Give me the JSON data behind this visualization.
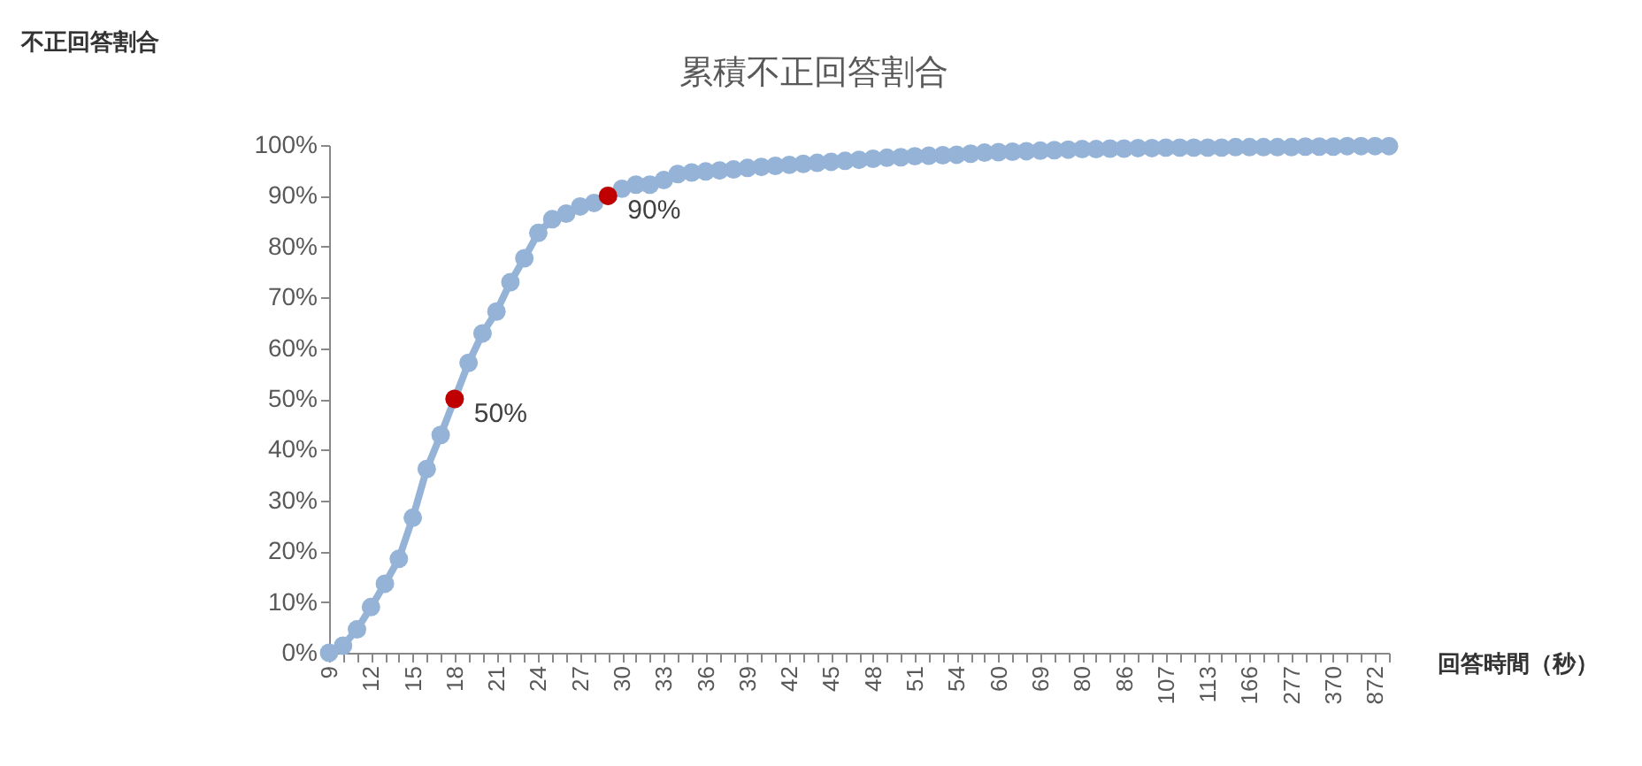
{
  "chart_data": {
    "type": "line",
    "title": "累積不正回答割合",
    "xlabel": "回答時間（秒）",
    "annotations": [
      "不正回答割合"
    ],
    "categories": [
      "9",
      null,
      null,
      "12",
      null,
      null,
      "15",
      null,
      null,
      "18",
      null,
      null,
      "21",
      null,
      null,
      "24",
      null,
      null,
      "27",
      null,
      null,
      "30",
      null,
      null,
      "33",
      null,
      null,
      "36",
      null,
      null,
      "39",
      null,
      null,
      "42",
      null,
      null,
      "45",
      null,
      null,
      "48",
      null,
      null,
      "51",
      null,
      null,
      "54",
      null,
      null,
      "60",
      null,
      null,
      "69",
      null,
      null,
      "80",
      null,
      null,
      "86",
      null,
      null,
      "107",
      null,
      null,
      "113",
      null,
      null,
      "166",
      null,
      null,
      "277",
      null,
      null,
      "370",
      null,
      null,
      "872",
      null
    ],
    "series": [
      {
        "color": "#95b3d7",
        "values": [
          0,
          1.4,
          4.6,
          9.0,
          13.6,
          18.5,
          26.6,
          36.2,
          42.9,
          50,
          57.1,
          62.9,
          67.2,
          73.0,
          77.7,
          82.7,
          85.4,
          86.5,
          87.9,
          88.6,
          90,
          91.4,
          92.2,
          92.2,
          93.1,
          94.3,
          94.6,
          94.8,
          95.0,
          95.2,
          95.5,
          95.7,
          95.9,
          96.1,
          96.3,
          96.5,
          96.7,
          96.9,
          97.1,
          97.3,
          97.5,
          97.6,
          97.8,
          97.9,
          98.0,
          98.1,
          98.3,
          98.5,
          98.6,
          98.7,
          98.8,
          98.9,
          99.0,
          99.1,
          99.2,
          99.2,
          99.3,
          99.3,
          99.4,
          99.4,
          99.5,
          99.5,
          99.5,
          99.5,
          99.5,
          99.6,
          99.6,
          99.6,
          99.6,
          99.6,
          99.7,
          99.7,
          99.7,
          99.8,
          99.8,
          99.8,
          99.8
        ]
      },
      {
        "type": "scatter",
        "color": "#c00000",
        "values": [
          null,
          null,
          null,
          null,
          null,
          null,
          null,
          null,
          null,
          50,
          null,
          null,
          null,
          null,
          null,
          null,
          null,
          null,
          null,
          null,
          90,
          null,
          null,
          null,
          null,
          null,
          null,
          null,
          null,
          null,
          null,
          null,
          null,
          null,
          null,
          null,
          null,
          null,
          null,
          null,
          null,
          null,
          null,
          null,
          null,
          null,
          null,
          null,
          null,
          null,
          null,
          null,
          null,
          null,
          null,
          null,
          null,
          null,
          null,
          null,
          null,
          null,
          null,
          null,
          null,
          null,
          null,
          null,
          null,
          null,
          null,
          null,
          null,
          null,
          null,
          null,
          null
        ],
        "value_labels": [
          null,
          null,
          null,
          null,
          null,
          null,
          null,
          null,
          null,
          "50%",
          null,
          null,
          null,
          null,
          null,
          null,
          null,
          null,
          null,
          null,
          "90%",
          null,
          null,
          null,
          null,
          null,
          null,
          null,
          null,
          null,
          null,
          null,
          null,
          null,
          null,
          null,
          null,
          null,
          null,
          null,
          null,
          null,
          null,
          null,
          null,
          null,
          null,
          null,
          null,
          null,
          null,
          null,
          null,
          null,
          null,
          null,
          null,
          null,
          null,
          null,
          null,
          null,
          null,
          null,
          null,
          null,
          null,
          null,
          null,
          null,
          null,
          null,
          null,
          null,
          null,
          null,
          null
        ]
      }
    ],
    "ylim": [
      0,
      100
    ],
    "yticks": [
      {
        "value": 0,
        "label": "0%"
      },
      {
        "value": 10,
        "label": "10%"
      },
      {
        "value": 20,
        "label": "20%"
      },
      {
        "value": 30,
        "label": "30%"
      },
      {
        "value": 40,
        "label": "40%"
      },
      {
        "value": 50,
        "label": "50%"
      },
      {
        "value": 60,
        "label": "60%"
      },
      {
        "value": 70,
        "label": "70%"
      },
      {
        "value": 80,
        "label": "80%"
      },
      {
        "value": 90,
        "label": "90%"
      },
      {
        "value": 100,
        "label": "100%"
      }
    ],
    "grid": false,
    "marker": "circle",
    "line_style": "solid"
  }
}
